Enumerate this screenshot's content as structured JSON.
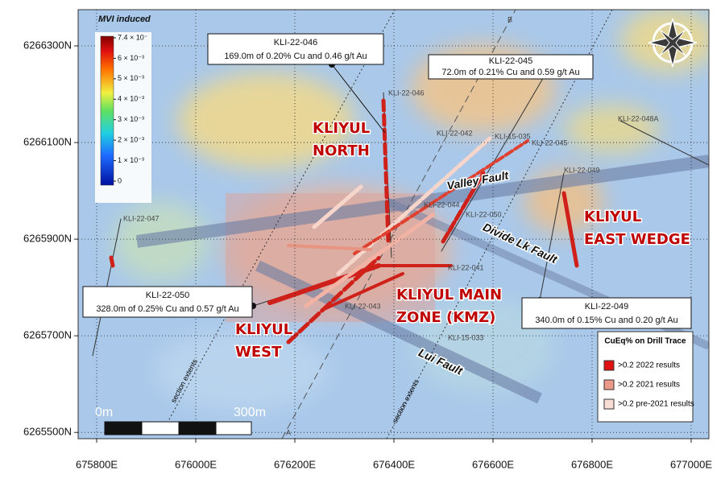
{
  "map": {
    "legend_title": "MVI induced",
    "colorbar_labels": [
      "7.4 × 10⁻",
      "6 × 10⁻³",
      "5 × 10⁻³",
      "4 × 10⁻³",
      "3 × 10⁻³",
      "2 × 10⁻³",
      "1 × 10⁻³",
      "0"
    ],
    "xlim": [
      675762.6,
      677035.8
    ],
    "ylim": [
      6265487,
      6266375
    ],
    "xticks": [
      {
        "value": 675800,
        "label": "675800E"
      },
      {
        "value": 676000,
        "label": "676000E"
      },
      {
        "value": 676200,
        "label": "676200E"
      },
      {
        "value": 676400,
        "label": "676400E"
      },
      {
        "value": 676600,
        "label": "676600E"
      },
      {
        "value": 676800,
        "label": "676800E"
      },
      {
        "value": 677000,
        "label": "677000E"
      }
    ],
    "yticks": [
      {
        "value": 6265500,
        "label": "6265500N"
      },
      {
        "value": 6265700,
        "label": "6265700N"
      },
      {
        "value": 6265900,
        "label": "6265900N"
      },
      {
        "value": 6266100,
        "label": "6266100N"
      },
      {
        "value": 6266300,
        "label": "6266300N"
      }
    ],
    "callouts": [
      {
        "hole": "KLI-22-046",
        "result": "169.0m of 0.20% Cu and 0.46 g/t Au"
      },
      {
        "hole": "KLI-22-045",
        "result": "72.0m of 0.21% Cu and 0.59 g/t Au"
      },
      {
        "hole": "KLI-22-050",
        "result": "328.0m of 0.25% Cu and 0.57 g/t Au"
      },
      {
        "hole": "KLI-22-049",
        "result": "340.0m of 0.15% Cu and 0.20 g/t Au"
      }
    ],
    "zones": [
      [
        "KLIYUL",
        "NORTH"
      ],
      [
        "KLIYUL",
        "EAST WEDGE"
      ],
      [
        "KLIYUL MAIN",
        "ZONE (KMZ)"
      ],
      [
        "KLIYUL",
        "WEST"
      ]
    ],
    "faults": [
      "Valley Fault",
      "Divide Lk Fault",
      "Lui Fault"
    ],
    "section_label": "section extents",
    "section_ends": [
      "A",
      "B"
    ],
    "hole_labels": [
      "KLI-22-046",
      "KLI-22-042",
      "KLI-15-035",
      "KLI-22-045",
      "KLI-22-048A",
      "KLI-22-049",
      "KLI-22-047",
      "KLI-22-044",
      "KLI-22-050",
      "KLI-22-041",
      "KLI-15-033",
      "KLI-22-043"
    ],
    "scale": [
      "0m",
      "300m"
    ],
    "drill_legend": {
      "title": "CuEq% on Drill Trace",
      "items": [
        ">0.2  2022 results",
        ">0.2  2021 results",
        ">0.2  pre-2021 results"
      ]
    }
  }
}
